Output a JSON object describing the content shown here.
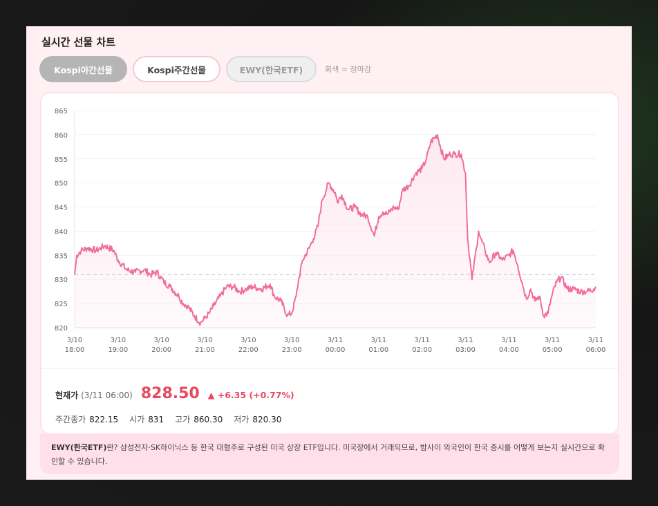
{
  "header": {
    "title": "실시간 선물 차트"
  },
  "tabs": [
    {
      "label": "Kospi야간선물"
    },
    {
      "label": "Kospi주간선물"
    },
    {
      "label": "EWY(한국ETF)"
    }
  ],
  "tab_note": "회색 = 장마감",
  "summary": {
    "price_label": "현재가",
    "price_time": "(3/11 06:00)",
    "price": "828.50",
    "change": "▲ +6.35 (+0.77%)",
    "stats": [
      {
        "label": "주간종가",
        "value": "822.15"
      },
      {
        "label": "시가",
        "value": "831"
      },
      {
        "label": "고가",
        "value": "860.30"
      },
      {
        "label": "저가",
        "value": "820.30"
      }
    ]
  },
  "info": {
    "term": "EWY(한국ETF)",
    "text": "란? 삼성전자·SK하이닉스 등 한국 대형주로 구성된 미국 상장 ETF입니다. 미국장에서 거래되므로, 밤사이 외국인이 한국 증시를 어떻게 보는지 실시간으로 확인할 수 있습니다."
  },
  "colors": {
    "line": "#f06d9c",
    "fill": "#fde7ef",
    "reference": "#c9c4ee",
    "accent": "#e8485f"
  },
  "chart_data": {
    "type": "area",
    "title": "",
    "xlabel": "",
    "ylabel": "",
    "ylim": [
      820,
      865
    ],
    "yticks": [
      820,
      825,
      830,
      835,
      840,
      845,
      850,
      855,
      860,
      865
    ],
    "xticks": [
      {
        "x": 0,
        "date": "3/10",
        "time": "18:00"
      },
      {
        "x": 1,
        "date": "3/10",
        "time": "19:00"
      },
      {
        "x": 2,
        "date": "3/10",
        "time": "20:00"
      },
      {
        "x": 3,
        "date": "3/10",
        "time": "21:00"
      },
      {
        "x": 4,
        "date": "3/10",
        "time": "22:00"
      },
      {
        "x": 5,
        "date": "3/10",
        "time": "23:00"
      },
      {
        "x": 6,
        "date": "3/11",
        "time": "00:00"
      },
      {
        "x": 7,
        "date": "3/11",
        "time": "01:00"
      },
      {
        "x": 8,
        "date": "3/11",
        "time": "02:00"
      },
      {
        "x": 9,
        "date": "3/11",
        "time": "03:00"
      },
      {
        "x": 10,
        "date": "3/11",
        "time": "04:00"
      },
      {
        "x": 11,
        "date": "3/11",
        "time": "05:00"
      },
      {
        "x": 12,
        "date": "3/11",
        "time": "06:00"
      }
    ],
    "reference_line": 831,
    "grid": true,
    "series": [
      {
        "x": [
          0,
          0.05,
          0.15,
          0.3,
          0.5,
          0.7,
          0.9,
          1.0,
          1.2,
          1.4,
          1.6,
          1.75,
          1.9,
          2.05,
          2.2,
          2.4,
          2.5,
          2.6,
          2.75,
          2.9,
          3.0,
          3.1,
          3.2,
          3.35,
          3.5,
          3.65,
          3.8,
          3.95,
          4.1,
          4.3,
          4.5,
          4.6,
          4.75,
          4.9,
          5.0,
          5.1,
          5.15,
          5.25,
          5.4,
          5.5,
          5.6,
          5.7,
          5.85,
          6.0,
          6.05,
          6.15,
          6.3,
          6.45,
          6.6,
          6.75,
          6.9,
          7.0,
          7.1,
          7.2,
          7.35,
          7.45,
          7.55,
          7.7,
          7.85,
          8.0,
          8.1,
          8.2,
          8.35,
          8.5,
          8.65,
          8.75,
          8.9,
          9.0,
          9.05,
          9.15,
          9.25,
          9.3,
          9.35,
          9.45,
          9.55,
          9.7,
          9.85,
          10.0,
          10.1,
          10.2,
          10.3,
          10.4,
          10.5,
          10.6,
          10.7,
          10.8,
          10.9,
          11.0,
          11.1,
          11.2,
          11.35,
          11.5,
          11.65,
          11.8,
          11.95,
          12.0
        ],
        "y": [
          831,
          835,
          836,
          836.5,
          836,
          837,
          836,
          834,
          832,
          831.5,
          832,
          831,
          831.5,
          829.5,
          828.5,
          826.5,
          825,
          824.5,
          822.5,
          821,
          822,
          823,
          824.5,
          826.5,
          828.5,
          828.5,
          827.5,
          828,
          828.5,
          828,
          829,
          826.5,
          825.5,
          822.5,
          823,
          826.5,
          829.5,
          834,
          836.5,
          838.5,
          841,
          846.5,
          850,
          848,
          846,
          847.5,
          844.5,
          845,
          843.5,
          843,
          839,
          843,
          844,
          843.5,
          845,
          844.5,
          848.5,
          849.5,
          852,
          853,
          855,
          858.5,
          860,
          855,
          856,
          856,
          856,
          852,
          838.5,
          830,
          836.5,
          840,
          838.5,
          836,
          833.5,
          835.5,
          834,
          835,
          836,
          833,
          829.5,
          826,
          828,
          825.5,
          826.5,
          822.5,
          823,
          827,
          829.5,
          830.5,
          828,
          828,
          827.5,
          827.5,
          828,
          828.5
        ]
      }
    ]
  }
}
